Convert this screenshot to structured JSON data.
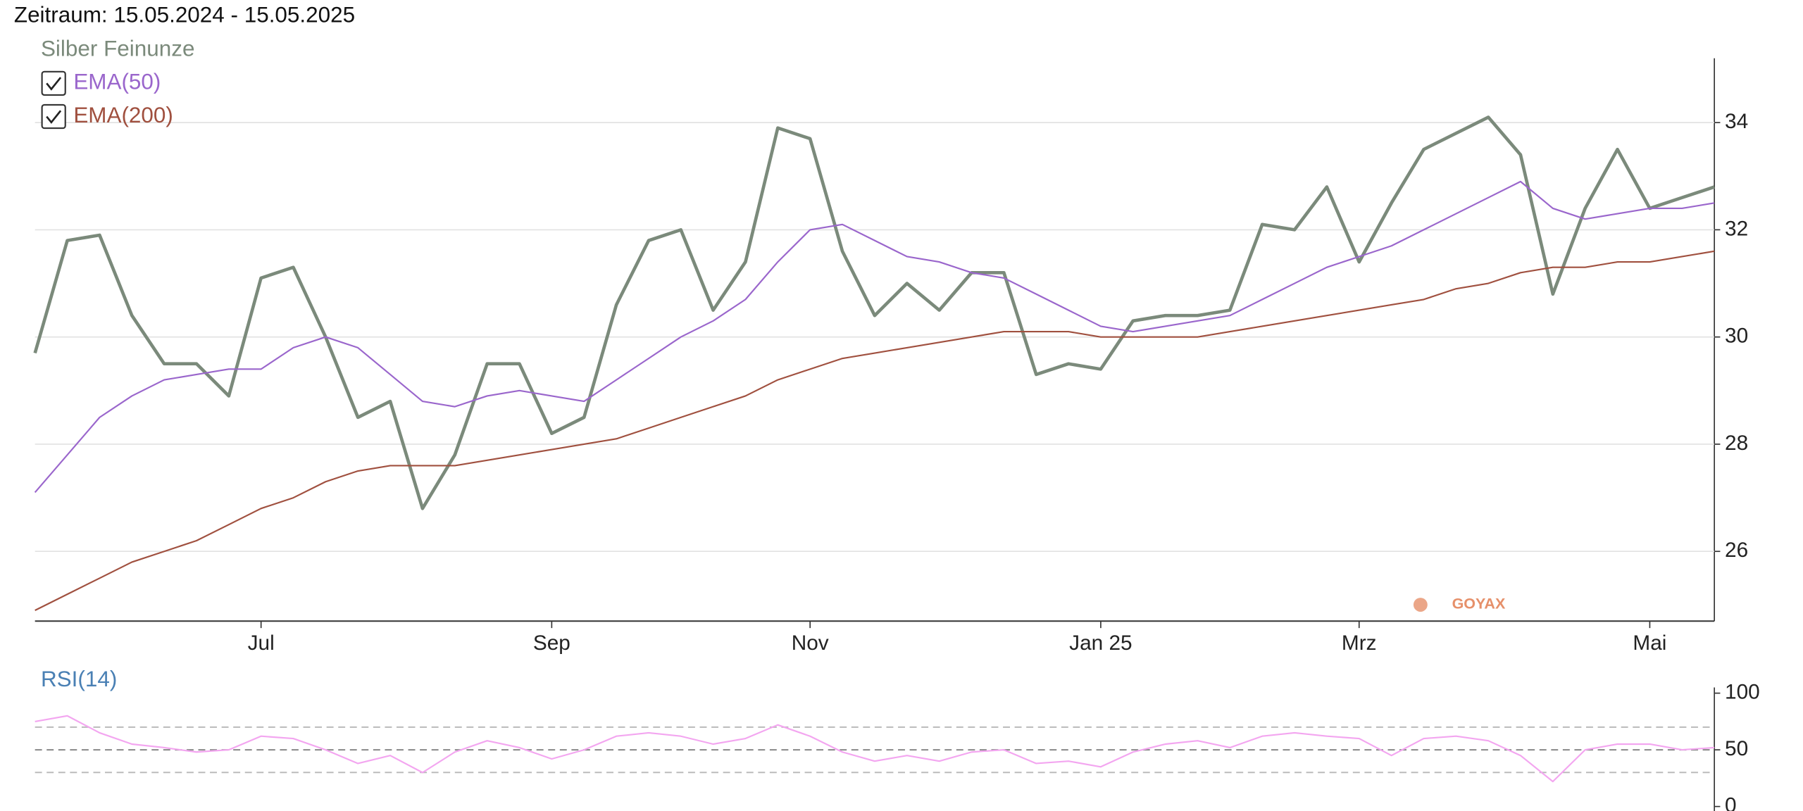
{
  "chart_data": [
    {
      "type": "line",
      "title": "Zeitraum: 15.05.2024 - 15.05.2025",
      "watermark": "GOYAX",
      "categories": [
        null,
        null,
        null,
        null,
        null,
        null,
        null,
        "Jul",
        null,
        null,
        null,
        null,
        null,
        null,
        null,
        null,
        "Sep",
        null,
        null,
        null,
        null,
        null,
        null,
        null,
        "Nov",
        null,
        null,
        null,
        null,
        null,
        null,
        null,
        null,
        "Jan 25",
        null,
        null,
        null,
        null,
        null,
        null,
        null,
        "Mrz",
        null,
        null,
        null,
        null,
        null,
        null,
        null,
        null,
        "Mai",
        null,
        null
      ],
      "ylim": [
        24.7,
        35.2
      ],
      "yticks": [
        26,
        28,
        30,
        32,
        34
      ],
      "grid": true,
      "series": [
        {
          "name": "Silber Feinunze",
          "color": "#7b8a7b",
          "values": [
            29.7,
            31.8,
            31.9,
            30.4,
            29.5,
            29.5,
            28.9,
            31.1,
            31.3,
            30.0,
            28.5,
            28.8,
            26.8,
            27.8,
            29.5,
            29.5,
            28.2,
            28.5,
            30.6,
            31.8,
            32.0,
            30.5,
            31.4,
            33.9,
            33.7,
            31.6,
            30.4,
            31.0,
            30.5,
            31.2,
            31.2,
            29.3,
            29.5,
            29.4,
            30.3,
            30.4,
            30.4,
            30.5,
            32.1,
            32.0,
            32.8,
            31.4,
            32.5,
            33.5,
            33.8,
            34.1,
            33.4,
            30.8,
            32.4,
            33.5,
            32.4,
            32.6,
            32.8
          ]
        },
        {
          "name": "EMA(50)",
          "color": "#9a66cc",
          "values": [
            27.1,
            27.8,
            28.5,
            28.9,
            29.2,
            29.3,
            29.4,
            29.4,
            29.8,
            30.0,
            29.8,
            29.3,
            28.8,
            28.7,
            28.9,
            29.0,
            28.9,
            28.8,
            29.2,
            29.6,
            30.0,
            30.3,
            30.7,
            31.4,
            32.0,
            32.1,
            31.8,
            31.5,
            31.4,
            31.2,
            31.1,
            30.8,
            30.5,
            30.2,
            30.1,
            30.2,
            30.3,
            30.4,
            30.7,
            31.0,
            31.3,
            31.5,
            31.7,
            32.0,
            32.3,
            32.6,
            32.9,
            32.4,
            32.2,
            32.3,
            32.4,
            32.4,
            32.5
          ]
        },
        {
          "name": "EMA(200)",
          "color": "#a0503f",
          "values": [
            24.9,
            25.2,
            25.5,
            25.8,
            26.0,
            26.2,
            26.5,
            26.8,
            27.0,
            27.3,
            27.5,
            27.6,
            27.6,
            27.6,
            27.7,
            27.8,
            27.9,
            28.0,
            28.1,
            28.3,
            28.5,
            28.7,
            28.9,
            29.2,
            29.4,
            29.6,
            29.7,
            29.8,
            29.9,
            30.0,
            30.1,
            30.1,
            30.1,
            30.0,
            30.0,
            30.0,
            30.0,
            30.1,
            30.2,
            30.3,
            30.4,
            30.5,
            30.6,
            30.7,
            30.9,
            31.0,
            31.2,
            31.3,
            31.3,
            31.4,
            31.4,
            31.5,
            31.6
          ]
        }
      ]
    },
    {
      "type": "line",
      "ylim": [
        -5,
        105
      ],
      "yticks": [
        0,
        50,
        100
      ],
      "ref_lines": [
        30,
        50,
        70
      ],
      "series": [
        {
          "name": "RSI(14)",
          "color": "#f3a6f0",
          "values": [
            75,
            80,
            65,
            55,
            52,
            48,
            50,
            62,
            60,
            50,
            38,
            45,
            30,
            48,
            58,
            52,
            42,
            50,
            62,
            65,
            62,
            55,
            60,
            72,
            62,
            48,
            40,
            45,
            40,
            48,
            50,
            38,
            40,
            35,
            48,
            55,
            58,
            52,
            62,
            65,
            62,
            60,
            45,
            60,
            62,
            58,
            45,
            22,
            50,
            55,
            55,
            50,
            52
          ]
        }
      ]
    }
  ]
}
